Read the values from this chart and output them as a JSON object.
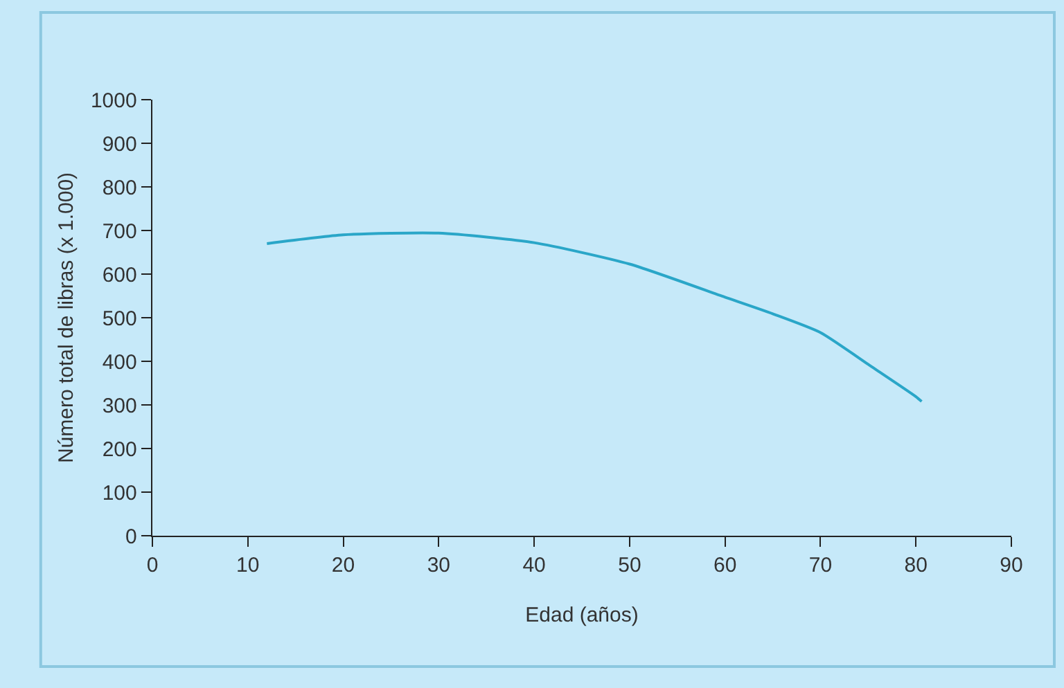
{
  "chart_data": {
    "type": "line",
    "xlabel": "Edad (años)",
    "ylabel": "Número total de libras (x 1.000)",
    "x": [
      12,
      20,
      30,
      40,
      50,
      60,
      65,
      70,
      75,
      80,
      80.6
    ],
    "series": [
      {
        "color": "#2aa6c8",
        "values": [
          670,
          690,
          694,
          672,
          623,
          547,
          509,
          466,
          393,
          319,
          308
        ]
      }
    ],
    "xlim": [
      0,
      90
    ],
    "xticks": [
      0,
      10,
      20,
      30,
      40,
      50,
      60,
      70,
      80,
      90
    ],
    "ylim": [
      0,
      1000
    ],
    "yticks": [
      0,
      100,
      200,
      300,
      400,
      500,
      600,
      700,
      800,
      900,
      1000
    ],
    "grid": false,
    "legend": false,
    "marker": "none",
    "line_style": "solid"
  }
}
